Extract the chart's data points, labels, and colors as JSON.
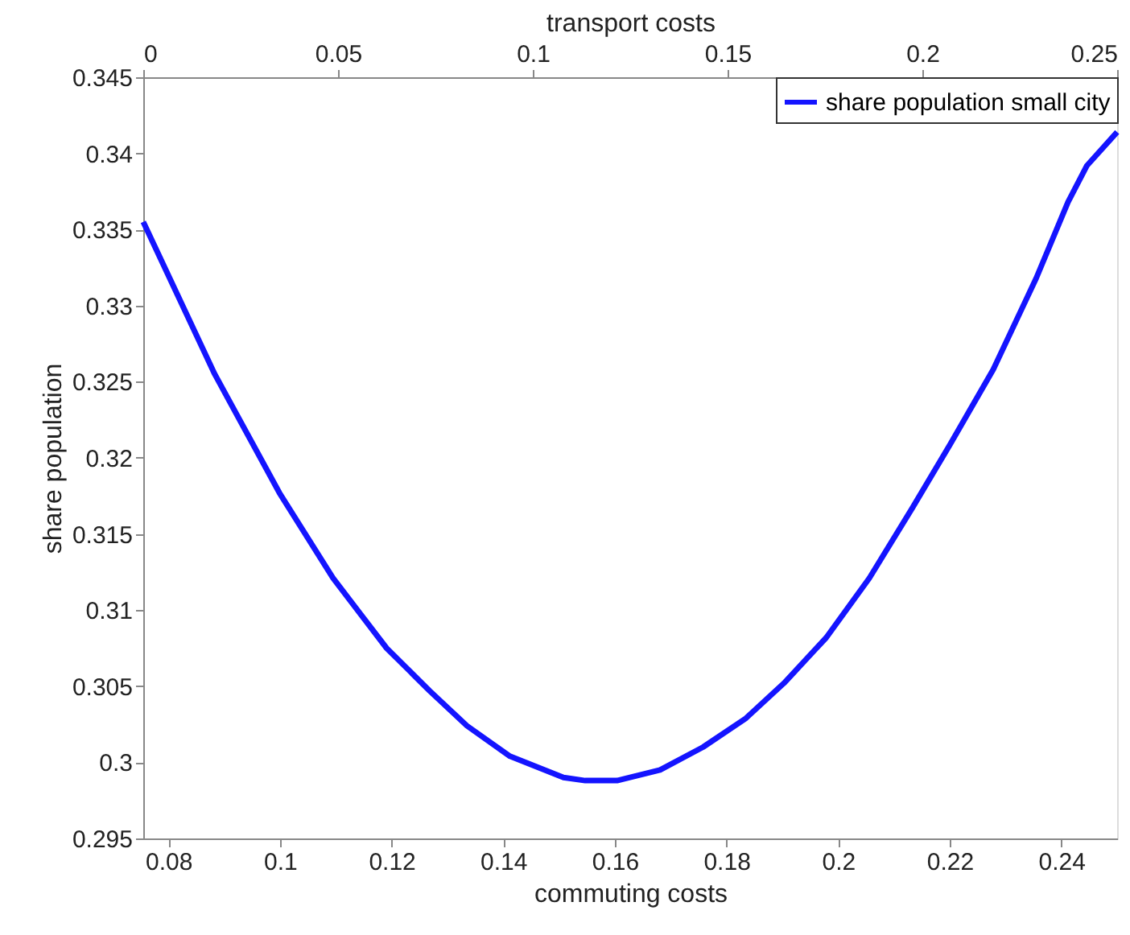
{
  "chart_data": {
    "type": "line",
    "xlabel": "commuting costs",
    "ylabel": "share population",
    "x2label": "transport costs",
    "xlim": [
      0.0755,
      0.25
    ],
    "xticks": [
      0.08,
      0.1,
      0.12,
      0.14,
      0.16,
      0.18,
      0.2,
      0.22,
      0.24
    ],
    "x2lim": [
      0,
      0.25
    ],
    "x2ticks": [
      0,
      0.05,
      0.1,
      0.15,
      0.2,
      0.25
    ],
    "ylim": [
      0.295,
      0.345
    ],
    "yticks": [
      0.295,
      0.3,
      0.305,
      0.31,
      0.315,
      0.32,
      0.325,
      0.33,
      0.335,
      0.34,
      0.345
    ],
    "grid": false,
    "legend": "top right",
    "line_style": "solid",
    "marker": "none",
    "x": [
      0.0755,
      0.0883,
      0.0999,
      0.1095,
      0.1191,
      0.1268,
      0.1335,
      0.1412,
      0.1508,
      0.1547,
      0.1604,
      0.1681,
      0.1758,
      0.1835,
      0.1903,
      0.1979,
      0.2056,
      0.2133,
      0.2201,
      0.2278,
      0.2355,
      0.2412,
      0.2446,
      0.25
    ],
    "series": [
      {
        "name": "share population small city",
        "color": "#1414ff",
        "values": [
          0.3355,
          0.3255,
          0.3177,
          0.3121,
          0.3075,
          0.3047,
          0.3024,
          0.3004,
          0.299,
          0.2988,
          0.2988,
          0.2995,
          0.301,
          0.3029,
          0.3052,
          0.3082,
          0.3121,
          0.3167,
          0.3209,
          0.3258,
          0.3318,
          0.3368,
          0.3392,
          0.3414
        ]
      }
    ]
  }
}
